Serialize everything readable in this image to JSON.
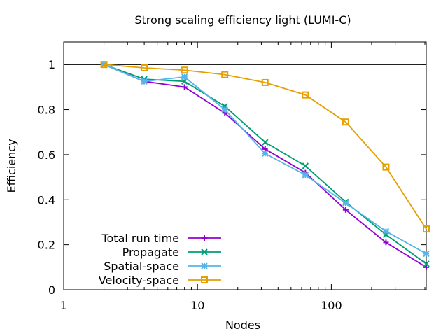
{
  "chart_data": {
    "type": "line",
    "title": "Strong scaling efficiency light (LUMI-C)",
    "xlabel": "Nodes",
    "ylabel": "Efficiency",
    "x_scale": "log",
    "xlim": [
      1,
      512
    ],
    "ylim": [
      0,
      1.1
    ],
    "x_ticks": [
      1,
      10,
      100
    ],
    "y_ticks": [
      0,
      0.2,
      0.4,
      0.6,
      0.8,
      1
    ],
    "x_tick_labels": [
      "1",
      "10",
      "100"
    ],
    "y_tick_labels": [
      "0",
      "0.2",
      "0.4",
      "0.6",
      "0.8",
      "1"
    ],
    "reference_line": {
      "y": 1,
      "color": "#000000"
    },
    "grid": false,
    "legend_position": "bottom-left",
    "x": [
      2,
      4,
      8,
      16,
      32,
      64,
      128,
      256,
      512
    ],
    "series": [
      {
        "name": "Total run time",
        "color": "#9400d3",
        "marker": "plus",
        "values": [
          1.0,
          0.925,
          0.9,
          0.785,
          0.625,
          0.52,
          0.355,
          0.21,
          0.1
        ]
      },
      {
        "name": "Propagate",
        "color": "#009e73",
        "marker": "cross",
        "values": [
          1.0,
          0.935,
          0.925,
          0.815,
          0.655,
          0.55,
          0.39,
          0.245,
          0.115
        ]
      },
      {
        "name": "Spatial-space",
        "color": "#56b4e9",
        "marker": "asterisk",
        "values": [
          1.0,
          0.925,
          0.945,
          0.8,
          0.605,
          0.51,
          0.385,
          0.26,
          0.16
        ]
      },
      {
        "name": "Velocity-space",
        "color": "#e69f00",
        "marker": "square",
        "values": [
          1.0,
          0.985,
          0.975,
          0.955,
          0.92,
          0.865,
          0.745,
          0.545,
          0.27
        ]
      }
    ]
  }
}
